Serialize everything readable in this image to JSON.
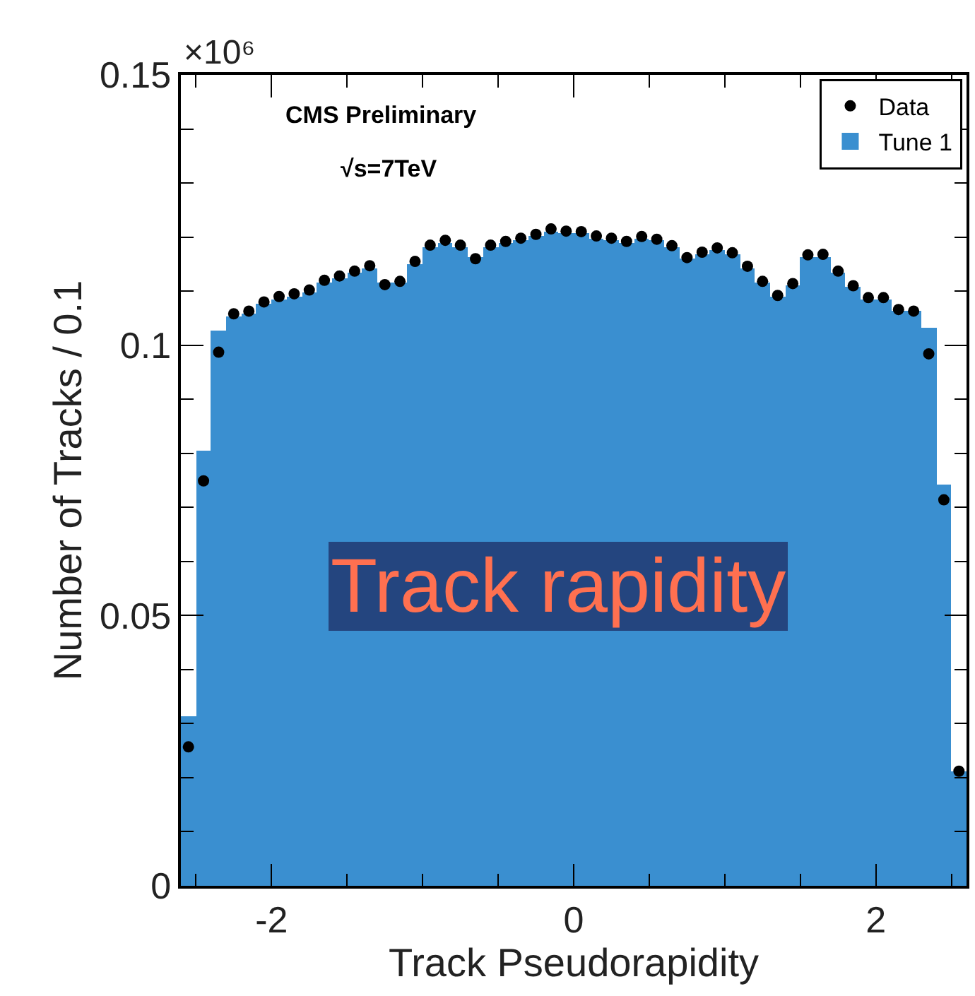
{
  "chart_data": {
    "type": "histogram",
    "xlabel": "Track Pseudorapidity",
    "ylabel": "Number of Tracks / 0.1",
    "annotations": [
      "×10⁶",
      "CMS Preliminary",
      "√s=7TeV",
      "Track rapidity"
    ],
    "bins": [
      -2.6,
      -2.5,
      -2.4,
      -2.3,
      -2.2,
      -2.1,
      -2.0,
      -1.9,
      -1.8,
      -1.7,
      -1.6,
      -1.5,
      -1.4,
      -1.3,
      -1.2,
      -1.1,
      -1.0,
      -0.9,
      -0.8,
      -0.7,
      -0.6,
      -0.5,
      -0.4,
      -0.3,
      -0.2,
      -0.1,
      0.0,
      0.1,
      0.2,
      0.3,
      0.4,
      0.5,
      0.6,
      0.7,
      0.8,
      0.9,
      1.0,
      1.1,
      1.2,
      1.3,
      1.4,
      1.5,
      1.6,
      1.7,
      1.8,
      1.9,
      2.0,
      2.1,
      2.2,
      2.3,
      2.4,
      2.5,
      2.6
    ],
    "series": [
      {
        "name": "Data",
        "type": "scatter",
        "marker": "circle",
        "color": "#000000",
        "x": [
          -2.55,
          -2.45,
          -2.35,
          -2.25,
          -2.15,
          -2.05,
          -1.95,
          -1.85,
          -1.75,
          -1.65,
          -1.55,
          -1.45,
          -1.35,
          -1.25,
          -1.15,
          -1.05,
          -0.95,
          -0.85,
          -0.75,
          -0.65,
          -0.55,
          -0.45,
          -0.35,
          -0.25,
          -0.15,
          -0.05,
          0.05,
          0.15,
          0.25,
          0.35,
          0.45,
          0.55,
          0.65,
          0.75,
          0.85,
          0.95,
          1.05,
          1.15,
          1.25,
          1.35,
          1.45,
          1.55,
          1.65,
          1.75,
          1.85,
          1.95,
          2.05,
          2.15,
          2.25,
          2.35,
          2.45,
          2.55
        ],
        "values": [
          0.0257,
          0.0749,
          0.0987,
          0.1058,
          0.1063,
          0.108,
          0.109,
          0.1095,
          0.1102,
          0.112,
          0.1128,
          0.1137,
          0.1147,
          0.1112,
          0.1118,
          0.1155,
          0.1185,
          0.1194,
          0.1185,
          0.116,
          0.1185,
          0.1192,
          0.1198,
          0.1205,
          0.1215,
          0.1211,
          0.121,
          0.1202,
          0.1198,
          0.1192,
          0.1201,
          0.1196,
          0.1184,
          0.1162,
          0.1172,
          0.118,
          0.1171,
          0.1146,
          0.1118,
          0.1092,
          0.1114,
          0.1167,
          0.1168,
          0.1137,
          0.111,
          0.1088,
          0.1088,
          0.1066,
          0.1063,
          0.0984,
          0.0714,
          0.0212
        ]
      },
      {
        "name": "Tune 1",
        "color": "#3a8fd0",
        "values": [
          0.0314,
          0.0804,
          0.1026,
          0.1054,
          0.1058,
          0.1076,
          0.1085,
          0.1091,
          0.1098,
          0.1115,
          0.1124,
          0.1133,
          0.1143,
          0.1115,
          0.1115,
          0.115,
          0.1181,
          0.1189,
          0.1181,
          0.1163,
          0.1181,
          0.1189,
          0.1194,
          0.1202,
          0.1211,
          0.1207,
          0.1207,
          0.1198,
          0.1194,
          0.1189,
          0.1198,
          0.1194,
          0.1181,
          0.1159,
          0.1168,
          0.1176,
          0.1168,
          0.1142,
          0.1115,
          0.1089,
          0.1111,
          0.1163,
          0.1163,
          0.1133,
          0.1107,
          0.1085,
          0.1085,
          0.1063,
          0.1063,
          0.1033,
          0.0743,
          0.0212
        ]
      }
    ],
    "xlim": [
      -2.6,
      2.6
    ],
    "xticks": [
      {
        "value": -2.5,
        "label": null
      },
      -2,
      {
        "value": -1.5,
        "label": null
      },
      {
        "value": -1,
        "label": null
      },
      {
        "value": -0.5,
        "label": null
      },
      0,
      {
        "value": 0.5,
        "label": null
      },
      {
        "value": 1,
        "label": null
      },
      {
        "value": 1.5,
        "label": null
      },
      2,
      {
        "value": 2.5,
        "label": null
      }
    ],
    "ylim": [
      0,
      0.15
    ],
    "yticks": [
      0,
      {
        "value": 0.01,
        "label": null
      },
      {
        "value": 0.02,
        "label": null
      },
      {
        "value": 0.03,
        "label": null
      },
      {
        "value": 0.04,
        "label": null
      },
      0.05,
      {
        "value": 0.06,
        "label": null
      },
      {
        "value": 0.07,
        "label": null
      },
      {
        "value": 0.08,
        "label": null
      },
      {
        "value": 0.09,
        "label": null
      },
      0.1,
      {
        "value": 0.11,
        "label": null
      },
      {
        "value": 0.12,
        "label": null
      },
      {
        "value": 0.13,
        "label": null
      },
      {
        "value": 0.14,
        "label": null
      },
      0.15
    ],
    "legend": "top right"
  }
}
